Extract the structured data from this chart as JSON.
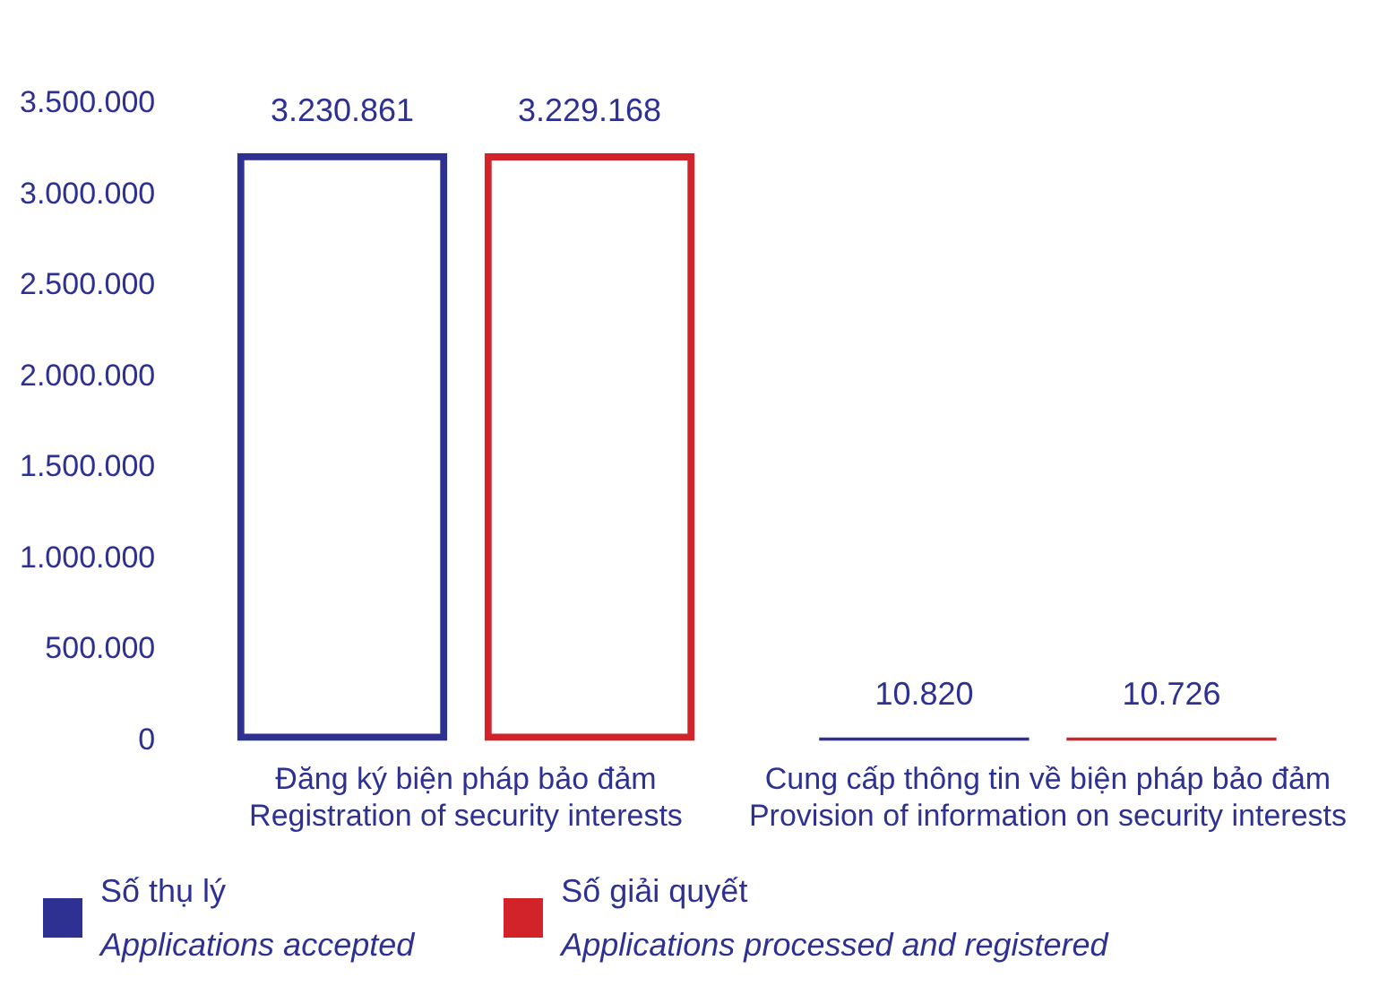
{
  "chart_data": {
    "type": "bar",
    "categories": [
      "Đăng ký biện pháp bảo đảm\nRegistration of security interests",
      "Cung cấp thông tin về biện pháp bảo đảm\nProvision of information on security interests"
    ],
    "series": [
      {
        "name": "Số thụ lý\nApplications accepted",
        "color": "#2e3192",
        "values": [
          3230861,
          10820
        ],
        "value_labels": [
          "3.230.861",
          "10.820"
        ]
      },
      {
        "name": "Số giải quyết\nApplications processed and registered",
        "color": "#d2232a",
        "values": [
          3229168,
          10726
        ],
        "value_labels": [
          "3.229.168",
          "10.726"
        ]
      }
    ],
    "ylim": [
      0,
      3500000
    ],
    "yticks": [
      {
        "value": 0,
        "label": "0"
      },
      {
        "value": 500000,
        "label": "500.000"
      },
      {
        "value": 1000000,
        "label": "1.000.000"
      },
      {
        "value": 1500000,
        "label": "1.500.000"
      },
      {
        "value": 2000000,
        "label": "2.000.000"
      },
      {
        "value": 2500000,
        "label": "2.500.000"
      },
      {
        "value": 3000000,
        "label": "3.000.000"
      },
      {
        "value": 3500000,
        "label": "3.500.000"
      }
    ],
    "grid": false,
    "legend": "bottom"
  }
}
